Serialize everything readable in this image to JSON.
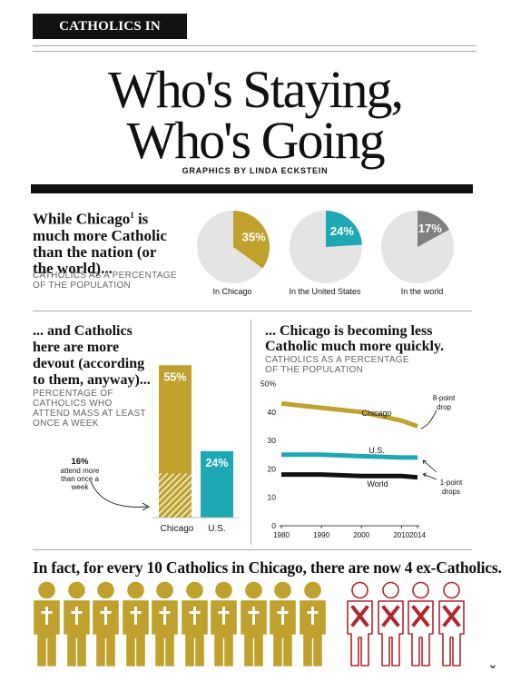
{
  "header": {
    "tag": "CATHOLICS IN CHICAGO",
    "title_line1": "Who's Staying,",
    "title_line2": "Who's Going",
    "credit": "GRAPHICS BY LINDA ECKSTEIN"
  },
  "colors": {
    "gold": "#C1A12D",
    "teal": "#1DA8B3",
    "gray": "#7F7F7F",
    "pie_bg": "#E4E4E4",
    "red": "#B0282E",
    "black": "#111111"
  },
  "section1": {
    "headline_l1": "While Chicago",
    "sup": "1",
    "headline_l1b": " is",
    "headline_l2": "much more Catholic",
    "headline_l3": "than the nation (or",
    "headline_l4": "the world)...",
    "caption_l1": "CATHOLICS AS A PERCENTAGE",
    "caption_l2": "OF THE POPULATION"
  },
  "section2": {
    "headline_l1": "... and Catholics",
    "headline_l2": "here are more",
    "headline_l3": "devout (according",
    "headline_l4": "to them, anyway)...",
    "caption_l1": "PERCENTAGE OF",
    "caption_l2": "CATHOLICS WHO",
    "caption_l3": "ATTEND MASS AT LEAST",
    "caption_l4": "ONCE A WEEK",
    "note_pct": "16%",
    "note_l1": "attend more",
    "note_l2": "than once a",
    "note_l3": "week"
  },
  "section3": {
    "headline_l1": "... Chicago is becoming less",
    "headline_l2": "Catholic much more quickly.",
    "caption_l1": "CATHOLICS AS A PERCENTAGE",
    "caption_l2": "OF THE POPULATION",
    "note_top_l1": "8-point",
    "note_top_l2": "drop",
    "note_bot_l1": "1-point",
    "note_bot_l2": "drops"
  },
  "bottom": {
    "headline": "In fact, for every 10 Catholics in Chicago, there are now 4 ex-Catholics.",
    "catholics": 10,
    "ex_catholics": 4
  },
  "chart_data": [
    {
      "type": "pie",
      "title": "CATHOLICS AS A PERCENTAGE OF THE POPULATION",
      "slices": [
        {
          "label": "In Chicago",
          "value": 35,
          "value_label": "35%",
          "color": "#C1A12D"
        },
        {
          "label": "In the United States",
          "value": 24,
          "value_label": "24%",
          "color": "#1DA8B3"
        },
        {
          "label": "In the world",
          "value": 17,
          "value_label": "17%",
          "color": "#7F7F7F"
        }
      ]
    },
    {
      "type": "bar",
      "title": "PERCENTAGE OF CATHOLICS WHO ATTEND MASS AT LEAST ONCE A WEEK",
      "categories": [
        "Chicago",
        "U.S."
      ],
      "values": [
        55,
        24
      ],
      "value_labels": [
        "55%",
        "24%"
      ],
      "sub_values": [
        16,
        0
      ],
      "colors": [
        "#C1A12D",
        "#1DA8B3"
      ]
    },
    {
      "type": "line",
      "title": "CATHOLICS AS A PERCENTAGE OF THE POPULATION",
      "x": [
        1980,
        1990,
        2000,
        2010,
        2014
      ],
      "xticks": [
        "1980",
        "1990",
        "2000",
        "2010",
        "2014"
      ],
      "yticks": [
        "0",
        "10",
        "20",
        "30",
        "40",
        "50%"
      ],
      "ylim": [
        0,
        50
      ],
      "series": [
        {
          "name": "Chicago",
          "values": [
            43,
            41.5,
            40,
            37,
            35
          ],
          "color": "#C1A12D"
        },
        {
          "name": "U.S.",
          "values": [
            25,
            25,
            24.5,
            24,
            24
          ],
          "color": "#1DA8B3"
        },
        {
          "name": "World",
          "values": [
            18,
            18,
            17.5,
            17.5,
            17
          ],
          "color": "#111111"
        }
      ]
    }
  ]
}
